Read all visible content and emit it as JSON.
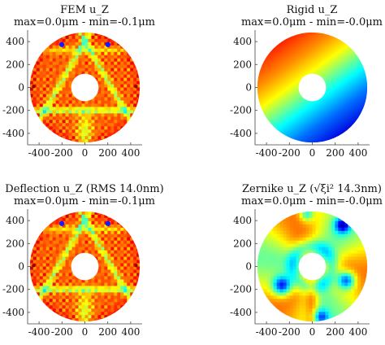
{
  "chart_data": [
    {
      "type": "heatmap",
      "title": "FEM u_Z",
      "subtitle": "max=0.0μm - min=-0.1μm",
      "pattern": "fem",
      "xlim": [
        -500,
        500
      ],
      "ylim": [
        -500,
        500
      ],
      "xticks": [
        -400,
        -200,
        0,
        200,
        400
      ],
      "yticks": [
        -400,
        -200,
        0,
        200,
        400
      ],
      "outer_radius": 480,
      "inner_radius": 120
    },
    {
      "type": "heatmap",
      "title": "Rigid u_Z",
      "subtitle": "max=0.0μm - min=-0.0μm",
      "pattern": "rigid",
      "xlim": [
        -500,
        500
      ],
      "ylim": [
        -500,
        500
      ],
      "xticks": [
        -400,
        -200,
        0,
        200,
        400
      ],
      "yticks": [
        -400,
        -200,
        0,
        200,
        400
      ],
      "outer_radius": 480,
      "inner_radius": 120
    },
    {
      "type": "heatmap",
      "title": "Deflection u_Z (RMS 14.0nm)",
      "subtitle": "max=0.0μm - min=-0.1μm",
      "pattern": "fem",
      "xlim": [
        -500,
        500
      ],
      "ylim": [
        -500,
        500
      ],
      "xticks": [
        -400,
        -200,
        0,
        200,
        400
      ],
      "yticks": [
        -400,
        -200,
        0,
        200,
        400
      ],
      "outer_radius": 480,
      "inner_radius": 120
    },
    {
      "type": "heatmap",
      "title": "Zernike u_Z (√ξi² 14.3nm)",
      "subtitle": "max=0.0μm - min=-0.0μm",
      "pattern": "zernike",
      "xlim": [
        -500,
        500
      ],
      "ylim": [
        -500,
        500
      ],
      "xticks": [
        -400,
        -200,
        0,
        200,
        400
      ],
      "yticks": [
        -400,
        -200,
        0,
        200,
        400
      ],
      "outer_radius": 480,
      "inner_radius": 120
    }
  ],
  "colors": {
    "colormap": [
      "#00008f",
      "#0000ff",
      "#0080ff",
      "#00ffff",
      "#80ff80",
      "#ffff00",
      "#ff8000",
      "#ff0000",
      "#800000"
    ],
    "axis": "#444444",
    "text": "#111111"
  }
}
